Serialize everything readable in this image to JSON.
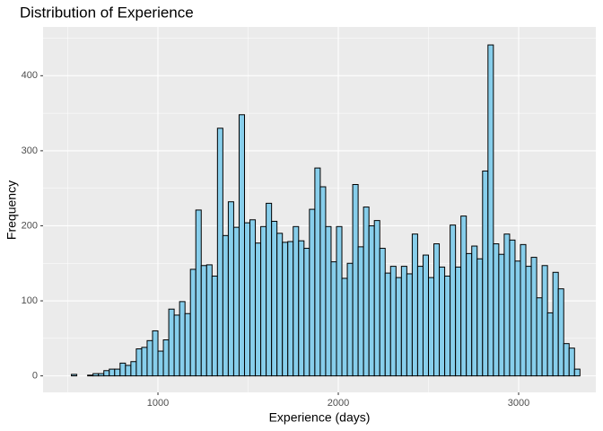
{
  "chart_data": {
    "type": "histogram",
    "title": "Distribution of Experience",
    "x_label": "Experience (days)",
    "y_label": "Frequency",
    "bins": [
      520,
      550,
      580,
      610,
      640,
      670,
      700,
      730,
      760,
      790,
      820,
      850,
      880,
      910,
      940,
      970,
      1000,
      1030,
      1060,
      1090,
      1120,
      1150,
      1180,
      1210,
      1240,
      1270,
      1300,
      1330,
      1360,
      1390,
      1420,
      1450,
      1480,
      1510,
      1540,
      1570,
      1600,
      1630,
      1660,
      1690,
      1720,
      1750,
      1780,
      1810,
      1840,
      1870,
      1900,
      1930,
      1960,
      1990,
      2020,
      2050,
      2080,
      2110,
      2140,
      2170,
      2200,
      2230,
      2260,
      2290,
      2320,
      2350,
      2380,
      2410,
      2440,
      2470,
      2500,
      2530,
      2560,
      2590,
      2620,
      2650,
      2680,
      2710,
      2740,
      2770,
      2800,
      2830,
      2860,
      2890,
      2920,
      2950,
      2980,
      3010,
      3040,
      3070,
      3100,
      3130,
      3160,
      3190,
      3220,
      3250,
      3280,
      3310,
      3340
    ],
    "values": [
      2,
      0,
      0,
      1,
      3,
      3,
      7,
      9,
      9,
      17,
      14,
      19,
      36,
      38,
      47,
      60,
      33,
      48,
      89,
      81,
      99,
      83,
      142,
      221,
      147,
      148,
      133,
      330,
      187,
      232,
      198,
      348,
      204,
      208,
      177,
      199,
      230,
      206,
      190,
      178,
      179,
      199,
      180,
      170,
      222,
      277,
      252,
      199,
      152,
      199,
      130,
      150,
      255,
      172,
      225,
      200,
      207,
      170,
      137,
      146,
      131,
      146,
      136,
      189,
      146,
      161,
      131,
      176,
      145,
      133,
      201,
      145,
      213,
      163,
      173,
      156,
      273,
      441,
      176,
      162,
      189,
      181,
      153,
      175,
      146,
      158,
      104,
      147,
      84,
      138,
      116,
      43,
      37,
      9
    ],
    "color": "#87ceeb",
    "edgecolor": "#000000",
    "xlim": [
      363,
      3428
    ],
    "xticks": [
      1000,
      2000,
      3000
    ],
    "ylim": [
      -22,
      465
    ],
    "yticks": [
      0,
      100,
      200,
      300,
      400
    ],
    "grid": true
  }
}
